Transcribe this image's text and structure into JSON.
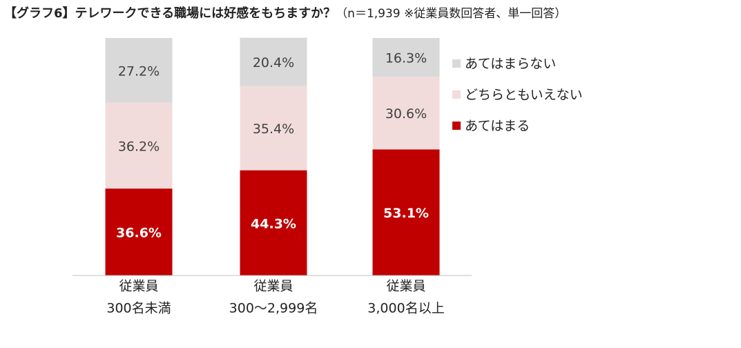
{
  "chart_data": {
    "type": "stacked_bar",
    "title": "【グラフ6】テレワークできる職場には好感をもちますか？",
    "subtitle": "（n＝1,939 ※従業員数回答者、単一回答）",
    "categories": [
      [
        "従業員",
        "300名未満"
      ],
      [
        "従業員",
        "300～2,999名"
      ],
      [
        "従業員",
        "3,000名以上"
      ]
    ],
    "series": [
      {
        "name": "あてはまる",
        "color": "#c00000",
        "values": [
          36.6,
          44.3,
          53.1
        ],
        "value_labels": [
          "36.6%",
          "44.3%",
          "53.1%"
        ]
      },
      {
        "name": "どちらともいえない",
        "color": "#f2dcdb",
        "values": [
          36.2,
          35.4,
          30.6
        ],
        "value_labels": [
          "36.2%",
          "35.4%",
          "30.6%"
        ]
      },
      {
        "name": "あてはまらない",
        "color": "#d9d9d9",
        "values": [
          27.2,
          20.4,
          16.3
        ],
        "value_labels": [
          "27.2%",
          "20.4%",
          "16.3%"
        ]
      }
    ],
    "ylim": [
      0,
      100
    ],
    "legend": "right"
  }
}
